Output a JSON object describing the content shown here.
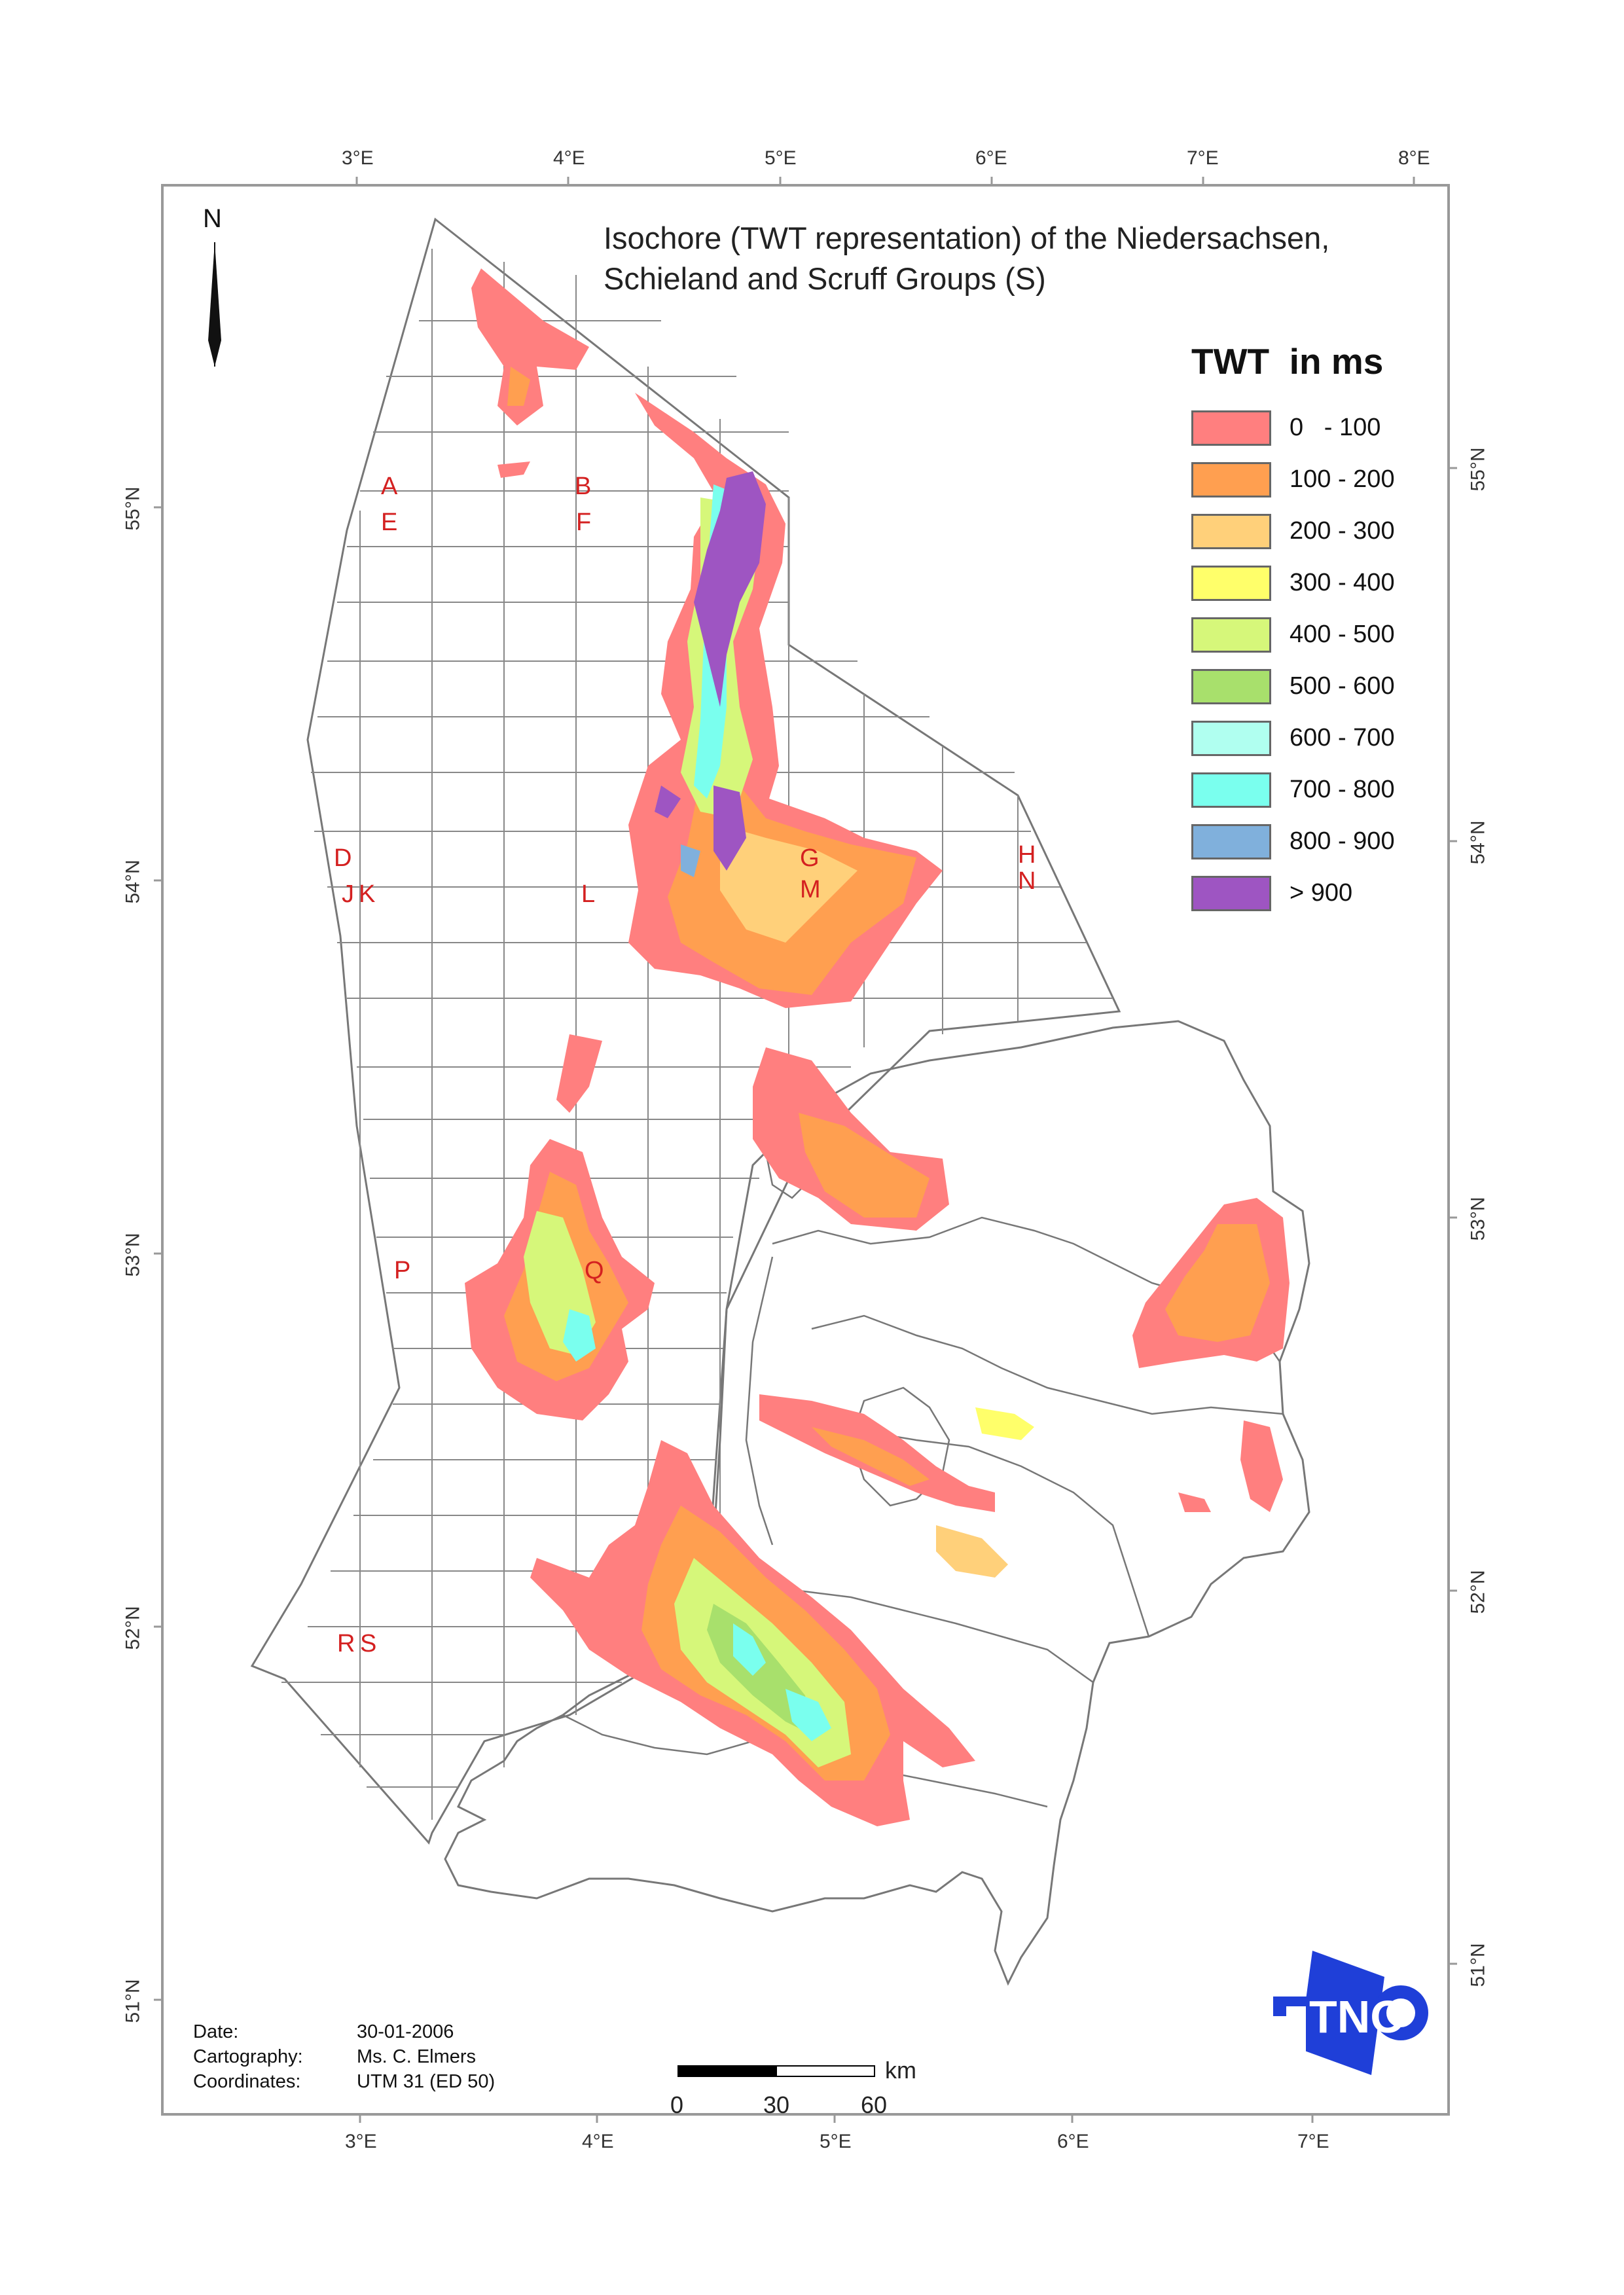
{
  "map": {
    "title": "Isochore (TWT representation) of the Niedersachsen, Schieland and Scruff Groups (S)",
    "title_lines": [
      "Isochore (TWT representation) of the Niedersachsen,",
      "Schieland and Scruff Groups (S)"
    ],
    "north_label": "N"
  },
  "graticule": {
    "top_lon_labels": [
      "3°E",
      "4°E",
      "5°E",
      "6°E",
      "7°E",
      "8°E"
    ],
    "bottom_lon_labels": [
      "3°E",
      "4°E",
      "5°E",
      "6°E",
      "7°E"
    ],
    "left_lat_labels": [
      "55°N",
      "54°N",
      "53°N",
      "52°N",
      "51°N"
    ],
    "right_lat_labels": [
      "55°N",
      "54°N",
      "53°N",
      "52°N",
      "51°N"
    ]
  },
  "blocks": [
    "A",
    "E",
    "B",
    "F",
    "D",
    "J",
    "K",
    "L",
    "G",
    "M",
    "H",
    "N",
    "P",
    "Q",
    "R",
    "S"
  ],
  "legend": {
    "title": "TWT  in ms",
    "items": [
      {
        "label": "0   - 100",
        "color": "#ff7f7f"
      },
      {
        "label": "100 - 200",
        "color": "#ff9f50"
      },
      {
        "label": "200 - 300",
        "color": "#ffd07a"
      },
      {
        "label": "300 - 400",
        "color": "#ffff6a"
      },
      {
        "label": "400 - 500",
        "color": "#d6f77a"
      },
      {
        "label": "500 - 600",
        "color": "#a8e06c"
      },
      {
        "label": "600 - 700",
        "color": "#b0fff0"
      },
      {
        "label": "700 - 800",
        "color": "#7affee"
      },
      {
        "label": "800 - 900",
        "color": "#80b0dc"
      },
      {
        "label": "> 900",
        "color": "#9e55c2"
      }
    ]
  },
  "metadata": {
    "date_label": "Date:",
    "date_value": "30-01-2006",
    "cartography_label": "Cartography:",
    "cartography_value": "Ms. C. Elmers",
    "coordinates_label": "Coordinates:",
    "coordinates_value": "UTM 31 (ED 50)"
  },
  "scale_bar": {
    "unit": "km",
    "ticks": [
      "0",
      "30",
      "60"
    ]
  },
  "logo": {
    "text": "TNO",
    "color": "#1f3fd8"
  },
  "colors": {
    "frame": "#999999",
    "grid": "#777777",
    "block_label": "#d42020"
  }
}
